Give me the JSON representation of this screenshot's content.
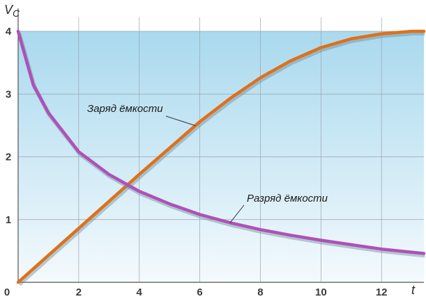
{
  "chart_data": {
    "type": "line",
    "xlabel": "t",
    "ylabel": "V",
    "ylabel_sub": "C",
    "xlim": [
      0,
      13.4
    ],
    "ylim": [
      0,
      4
    ],
    "xticks": [
      0,
      2,
      4,
      6,
      8,
      10,
      12
    ],
    "yticks": [
      1,
      2,
      3,
      4
    ],
    "x_tick_labels": [
      "0",
      "2",
      "4",
      "6",
      "8",
      "10",
      "12"
    ],
    "y_tick_labels": [
      "1",
      "2",
      "3",
      "4"
    ],
    "grid": true,
    "series": [
      {
        "name": "Заряд ёмкости",
        "color": "#e0701a",
        "x": [
          0,
          1,
          2,
          3,
          4,
          5,
          6,
          7,
          8,
          9,
          10,
          11,
          12,
          13,
          13.4
        ],
        "y": [
          0,
          0.43,
          0.86,
          1.29,
          1.72,
          2.14,
          2.56,
          2.93,
          3.26,
          3.53,
          3.74,
          3.88,
          3.96,
          4.0,
          4.0
        ]
      },
      {
        "name": "Разряд ёмкости",
        "color": "#b050b8",
        "x": [
          0,
          0.5,
          1,
          2,
          3,
          4,
          5,
          6,
          7,
          8,
          9,
          10,
          11,
          12,
          13,
          13.4
        ],
        "y": [
          4.0,
          3.15,
          2.7,
          2.08,
          1.72,
          1.45,
          1.25,
          1.08,
          0.95,
          0.84,
          0.75,
          0.67,
          0.6,
          0.53,
          0.48,
          0.46
        ]
      }
    ],
    "annotations": [
      {
        "text": "Заряд ёмкости",
        "series": 0,
        "x": 5.85
      },
      {
        "text": "Разряд ёмкости",
        "series": 1,
        "x": 7.0
      }
    ],
    "background_gradient": [
      "#a9d9ee",
      "#f4fafd"
    ],
    "grid_color": "#9aa3ad"
  }
}
